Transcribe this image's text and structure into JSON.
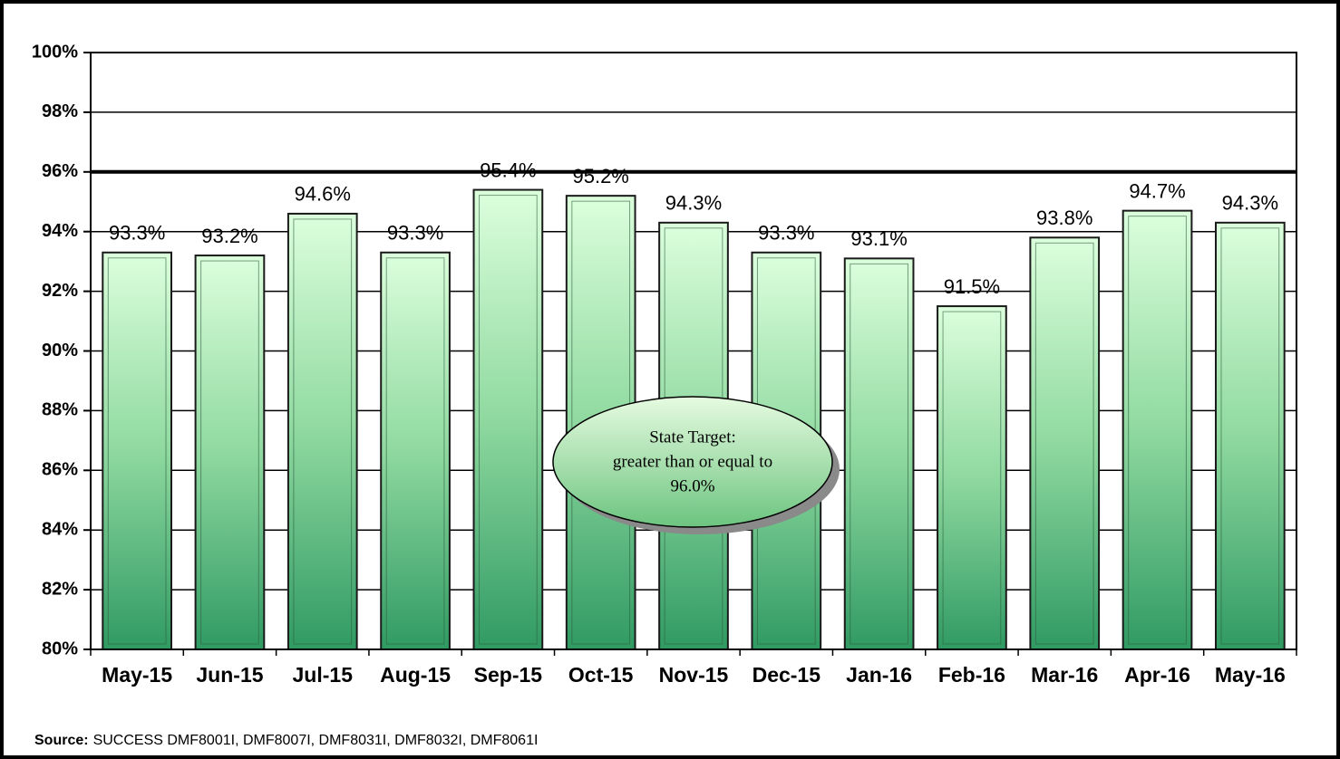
{
  "chart_data": {
    "type": "bar",
    "categories": [
      "May-15",
      "Jun-15",
      "Jul-15",
      "Aug-15",
      "Sep-15",
      "Oct-15",
      "Nov-15",
      "Dec-15",
      "Jan-16",
      "Feb-16",
      "Mar-16",
      "Apr-16",
      "May-16"
    ],
    "values": [
      93.3,
      93.2,
      94.6,
      93.3,
      95.4,
      95.2,
      94.3,
      93.3,
      93.1,
      91.5,
      93.8,
      94.7,
      94.3
    ],
    "value_labels": [
      "93.3%",
      "93.2%",
      "94.6%",
      "93.3%",
      "95.4%",
      "95.2%",
      "94.3%",
      "93.3%",
      "93.1%",
      "91.5%",
      "93.8%",
      "94.7%",
      "94.3%"
    ],
    "color": "#3c9e6a",
    "ylim": [
      80,
      100
    ],
    "yticks": [
      {
        "value": 80,
        "label": "80%"
      },
      {
        "value": 82,
        "label": "82%"
      },
      {
        "value": 84,
        "label": "84%"
      },
      {
        "value": 86,
        "label": "86%"
      },
      {
        "value": 88,
        "label": "88%"
      },
      {
        "value": 90,
        "label": "90%"
      },
      {
        "value": 92,
        "label": "92%"
      },
      {
        "value": 94,
        "label": "94%"
      },
      {
        "value": 96,
        "label": "96%"
      },
      {
        "value": 98,
        "label": "98%"
      },
      {
        "value": 100,
        "label": "100%"
      }
    ],
    "grid": true,
    "target": 96,
    "annotation": [
      "State Target:",
      "greater than or equal to",
      "96.0%"
    ],
    "source_label": "Source:",
    "source": "SUCCESS DMF8001I, DMF8007I, DMF8031I, DMF8032I, DMF8061I"
  }
}
